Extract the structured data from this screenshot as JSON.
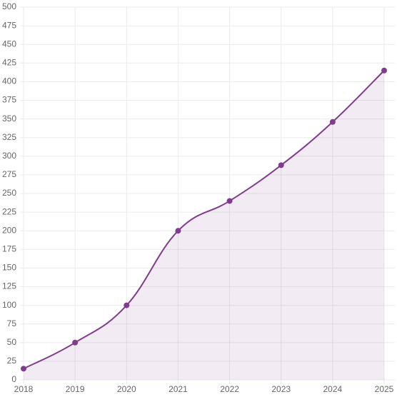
{
  "chart_data": {
    "type": "area",
    "categories": [
      "2018",
      "2019",
      "2020",
      "2021",
      "2022",
      "2023",
      "2024",
      "2025"
    ],
    "values": [
      15,
      50,
      100,
      200,
      240,
      288,
      346,
      415
    ],
    "color": "#803d8c",
    "ylim": [
      0,
      500
    ],
    "yticks": [
      0,
      25,
      50,
      75,
      100,
      125,
      150,
      175,
      200,
      225,
      250,
      275,
      300,
      325,
      350,
      375,
      400,
      425,
      450,
      475,
      500
    ],
    "grid": true
  }
}
